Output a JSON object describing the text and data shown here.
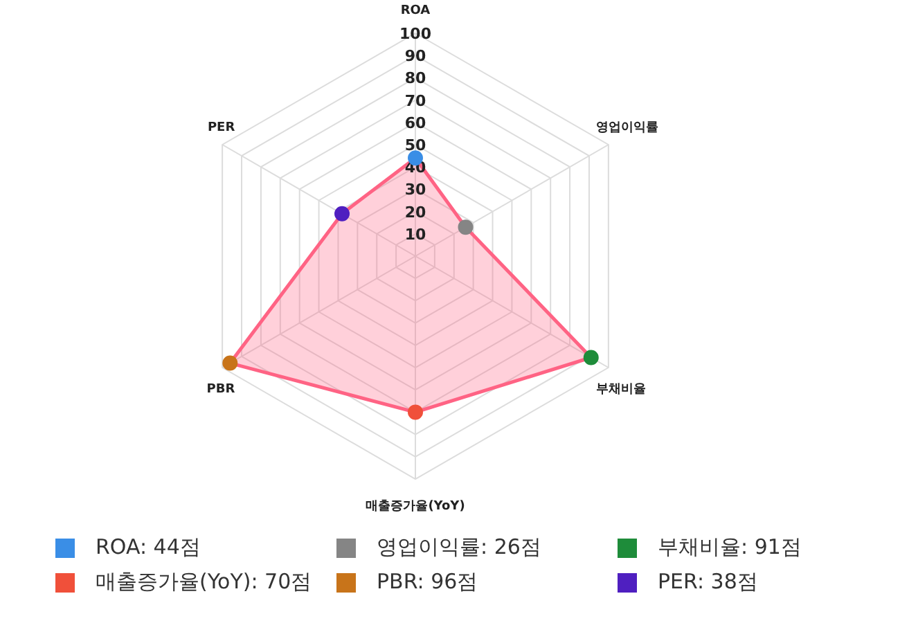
{
  "chart_data": {
    "type": "radar",
    "categories": [
      "ROA",
      "영업이익률",
      "부채비율",
      "매출증가율(YoY)",
      "PBR",
      "PER"
    ],
    "series": [
      {
        "color": "#ff6384",
        "values": [
          44,
          26,
          91,
          70,
          96,
          38
        ]
      }
    ],
    "colors": [
      "#3a8ee6",
      "#858585",
      "#1e8c3a",
      "#f0503a",
      "#c8741a",
      "#4f1fc0"
    ],
    "value_labels": [
      "ROA: 44점",
      "영업이익률: 26점",
      "부채비율: 91점",
      "매출증가율(YoY): 70점",
      "PBR: 96점",
      "PER: 38점"
    ],
    "ylim": [
      0,
      100
    ],
    "yticks": [
      10,
      20,
      30,
      40,
      50,
      60,
      70,
      80,
      90,
      100
    ],
    "grid": true,
    "marker": "circle"
  }
}
